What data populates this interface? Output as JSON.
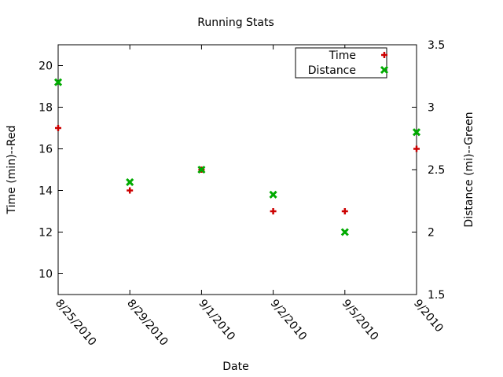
{
  "chart_data": {
    "type": "scatter",
    "title": "Running Stats",
    "xlabel": "Date",
    "ylabel_left": "Time (min)--Red",
    "ylabel_right": "Distance (mi)--Green",
    "categories": [
      "8/25/2010",
      "8/29/2010",
      "9/1/2010",
      "9/2/2010",
      "9/5/2010",
      "9/2010"
    ],
    "ylim_left": [
      9,
      21
    ],
    "ylim_right": [
      1.5,
      3.5
    ],
    "yticks_left": [
      "10",
      "12",
      "14",
      "16",
      "18",
      "20"
    ],
    "yticks_right": [
      "1.5",
      "2",
      "2.5",
      "3",
      "3.5"
    ],
    "grid": false,
    "legend_position": "top-right",
    "series": [
      {
        "name": "Time",
        "axis": "left",
        "marker": "plus",
        "color": "#cc0000",
        "values": [
          17,
          14,
          15,
          13,
          13,
          16
        ]
      },
      {
        "name": "Distance",
        "axis": "right",
        "marker": "cross",
        "color": "#00aa00",
        "values": [
          3.2,
          2.4,
          2.5,
          2.3,
          2.0,
          2.8
        ]
      }
    ]
  }
}
